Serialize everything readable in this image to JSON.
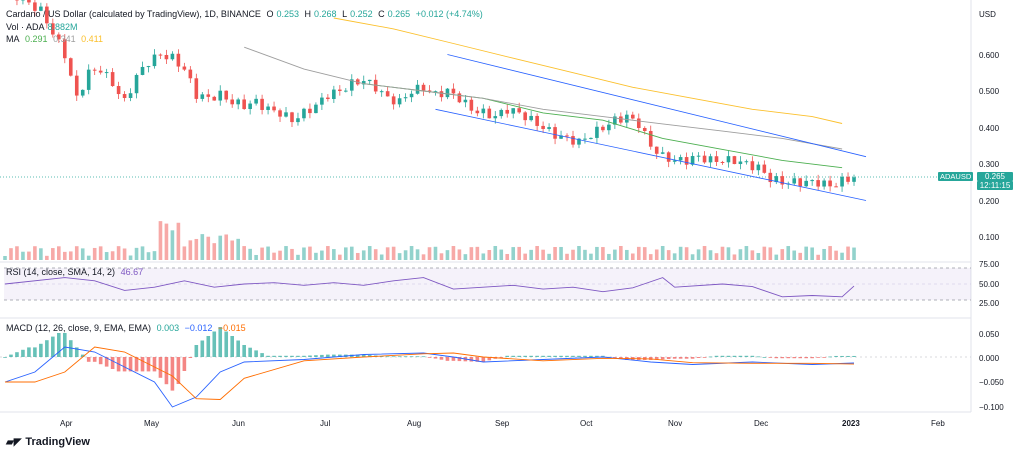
{
  "header": {
    "title": "Cardano / US Dollar (calculated by TradingView), 1D, BINANCE",
    "o_label": "O",
    "o_value": "0.253",
    "h_label": "H",
    "h_value": "0.268",
    "l_label": "L",
    "l_value": "0.252",
    "c_label": "C",
    "c_value": "0.265",
    "change": "+0.012 (+4.74%)",
    "vol_label": "Vol · ADA",
    "vol_value": "8.882M",
    "ma_label": "MA",
    "ma_values": [
      "0.291",
      "0.341",
      "0.411"
    ]
  },
  "price_axis": {
    "currency": "USD",
    "ticks": [
      "0.600",
      "0.500",
      "0.400",
      "0.300",
      "0.200",
      "0.100"
    ],
    "symbol_tag": "ADAUSD",
    "last_price": "0.265",
    "countdown": "12:11:15"
  },
  "rsi": {
    "legend": "RSI (14, close, SMA, 14, 2)",
    "value": "46.67",
    "ticks": [
      "75.00",
      "50.00",
      "25.00"
    ]
  },
  "macd": {
    "legend": "MACD (12, 26, close, 9, EMA, EMA)",
    "values": [
      "0.003",
      "−0.012",
      "−0.015"
    ],
    "ticks": [
      "0.050",
      "0.000",
      "−0.050",
      "−0.100"
    ]
  },
  "time_axis": [
    "Apr",
    "May",
    "Jun",
    "Jul",
    "Aug",
    "Sep",
    "Oct",
    "Nov",
    "Dec",
    "2023",
    "Feb"
  ],
  "branding": "TradingView",
  "colors": {
    "up": "#26a69a",
    "down": "#ef5350",
    "ma1": "#4caf50",
    "ma2": "#9e9e9e",
    "ma3": "#fbc02d",
    "channel": "#2962ff",
    "rsi": "#7e57c2",
    "macd": "#2962ff",
    "signal": "#ff6d00"
  },
  "chart_data": {
    "type": "candlestick",
    "symbol": "ADAUSD",
    "timeframe": "1D",
    "exchange": "BINANCE",
    "close_path": [
      [
        0,
        0.78
      ],
      [
        6,
        0.72
      ],
      [
        10,
        0.6
      ],
      [
        12,
        0.48
      ],
      [
        14,
        0.55
      ],
      [
        16,
        0.56
      ],
      [
        18,
        0.52
      ],
      [
        20,
        0.47
      ],
      [
        22,
        0.54
      ],
      [
        24,
        0.58
      ],
      [
        26,
        0.6
      ],
      [
        28,
        0.59
      ],
      [
        30,
        0.56
      ],
      [
        32,
        0.49
      ],
      [
        34,
        0.48
      ],
      [
        36,
        0.49
      ],
      [
        38,
        0.47
      ],
      [
        40,
        0.46
      ],
      [
        42,
        0.47
      ],
      [
        44,
        0.45
      ],
      [
        46,
        0.44
      ],
      [
        48,
        0.42
      ],
      [
        50,
        0.44
      ],
      [
        52,
        0.46
      ],
      [
        54,
        0.49
      ],
      [
        56,
        0.5
      ],
      [
        58,
        0.52
      ],
      [
        60,
        0.53
      ],
      [
        62,
        0.51
      ],
      [
        64,
        0.48
      ],
      [
        66,
        0.47
      ],
      [
        68,
        0.5
      ],
      [
        70,
        0.51
      ],
      [
        72,
        0.49
      ],
      [
        74,
        0.5
      ],
      [
        76,
        0.48
      ],
      [
        78,
        0.45
      ],
      [
        80,
        0.44
      ],
      [
        82,
        0.43
      ],
      [
        84,
        0.45
      ],
      [
        86,
        0.44
      ],
      [
        88,
        0.42
      ],
      [
        90,
        0.4
      ],
      [
        92,
        0.38
      ],
      [
        94,
        0.37
      ],
      [
        96,
        0.36
      ],
      [
        98,
        0.38
      ],
      [
        100,
        0.4
      ],
      [
        102,
        0.42
      ],
      [
        104,
        0.43
      ],
      [
        106,
        0.41
      ],
      [
        108,
        0.35
      ],
      [
        110,
        0.32
      ],
      [
        112,
        0.31
      ],
      [
        114,
        0.31
      ],
      [
        116,
        0.32
      ],
      [
        118,
        0.31
      ],
      [
        120,
        0.31
      ],
      [
        122,
        0.31
      ],
      [
        124,
        0.3
      ],
      [
        126,
        0.29
      ],
      [
        128,
        0.26
      ],
      [
        130,
        0.25
      ],
      [
        132,
        0.25
      ],
      [
        134,
        0.25
      ],
      [
        136,
        0.25
      ],
      [
        138,
        0.24
      ],
      [
        140,
        0.253
      ],
      [
        142,
        0.265
      ]
    ],
    "ma": [
      {
        "name": "MA 0.291",
        "values": [
          [
            60,
            0.52
          ],
          [
            70,
            0.5
          ],
          [
            80,
            0.48
          ],
          [
            90,
            0.44
          ],
          [
            100,
            0.42
          ],
          [
            110,
            0.37
          ],
          [
            120,
            0.34
          ],
          [
            130,
            0.31
          ],
          [
            140,
            0.29
          ]
        ]
      },
      {
        "name": "MA 0.341",
        "values": [
          [
            40,
            0.62
          ],
          [
            50,
            0.56
          ],
          [
            60,
            0.52
          ],
          [
            70,
            0.5
          ],
          [
            80,
            0.48
          ],
          [
            90,
            0.45
          ],
          [
            100,
            0.43
          ],
          [
            110,
            0.41
          ],
          [
            120,
            0.39
          ],
          [
            130,
            0.37
          ],
          [
            140,
            0.341
          ]
        ]
      },
      {
        "name": "MA 0.411",
        "values": [
          [
            55,
            0.7
          ],
          [
            65,
            0.67
          ],
          [
            75,
            0.63
          ],
          [
            85,
            0.59
          ],
          [
            95,
            0.55
          ],
          [
            105,
            0.51
          ],
          [
            115,
            0.48
          ],
          [
            125,
            0.45
          ],
          [
            135,
            0.43
          ],
          [
            140,
            0.411
          ]
        ]
      }
    ],
    "channel": {
      "upper": [
        [
          74,
          0.6
        ],
        [
          144,
          0.32
        ]
      ],
      "lower": [
        [
          72,
          0.45
        ],
        [
          144,
          0.2
        ]
      ]
    },
    "rsi_path": [
      [
        0,
        50
      ],
      [
        10,
        60
      ],
      [
        15,
        55
      ],
      [
        20,
        40
      ],
      [
        25,
        45
      ],
      [
        30,
        55
      ],
      [
        35,
        45
      ],
      [
        40,
        50
      ],
      [
        45,
        52
      ],
      [
        50,
        48
      ],
      [
        55,
        52
      ],
      [
        60,
        48
      ],
      [
        65,
        55
      ],
      [
        70,
        60
      ],
      [
        75,
        42
      ],
      [
        80,
        45
      ],
      [
        85,
        48
      ],
      [
        90,
        42
      ],
      [
        95,
        45
      ],
      [
        100,
        38
      ],
      [
        105,
        44
      ],
      [
        110,
        60
      ],
      [
        112,
        45
      ],
      [
        120,
        50
      ],
      [
        125,
        46
      ],
      [
        130,
        30
      ],
      [
        135,
        32
      ],
      [
        140,
        30
      ],
      [
        142,
        46.67
      ]
    ],
    "macd_path": [
      [
        0,
        -0.05
      ],
      [
        5,
        -0.03
      ],
      [
        10,
        0.02
      ],
      [
        15,
        0.01
      ],
      [
        20,
        -0.02
      ],
      [
        25,
        -0.05
      ],
      [
        28,
        -0.1
      ],
      [
        32,
        -0.08
      ],
      [
        36,
        -0.03
      ],
      [
        40,
        -0.01
      ],
      [
        50,
        -0.005
      ],
      [
        60,
        0.005
      ],
      [
        70,
        0.008
      ],
      [
        75,
        0.0
      ],
      [
        80,
        -0.01
      ],
      [
        90,
        -0.005
      ],
      [
        100,
        0.0
      ],
      [
        108,
        -0.01
      ],
      [
        115,
        -0.015
      ],
      [
        125,
        -0.01
      ],
      [
        135,
        -0.015
      ],
      [
        142,
        -0.012
      ]
    ]
  }
}
